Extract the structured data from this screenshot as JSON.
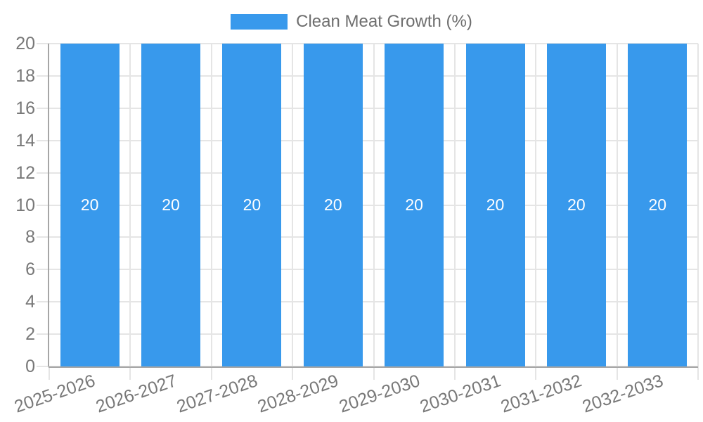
{
  "chart_data": {
    "type": "bar",
    "title": "",
    "xlabel": "",
    "ylabel": "",
    "categories": [
      "2025-2026",
      "2026-2027",
      "2027-2028",
      "2028-2029",
      "2029-2030",
      "2030-2031",
      "2031-2032",
      "2032-2033"
    ],
    "series": [
      {
        "name": "Clean Meat Growth (%)",
        "values": [
          20,
          20,
          20,
          20,
          20,
          20,
          20,
          20
        ]
      }
    ],
    "bar_value_labels": [
      "20",
      "20",
      "20",
      "20",
      "20",
      "20",
      "20",
      "20"
    ],
    "ylim": [
      0,
      20
    ],
    "yticks": [
      0,
      2,
      4,
      6,
      8,
      10,
      12,
      14,
      16,
      18,
      20
    ],
    "grid": true,
    "legend_position": "top",
    "colors": {
      "bar": "#3899ec",
      "grid": "#e5e5e5",
      "axis": "#a6a6a6",
      "tick_label": "#787878",
      "legend_text": "#6e6e6e",
      "bar_label": "#ffffff",
      "background": "#ffffff"
    }
  }
}
